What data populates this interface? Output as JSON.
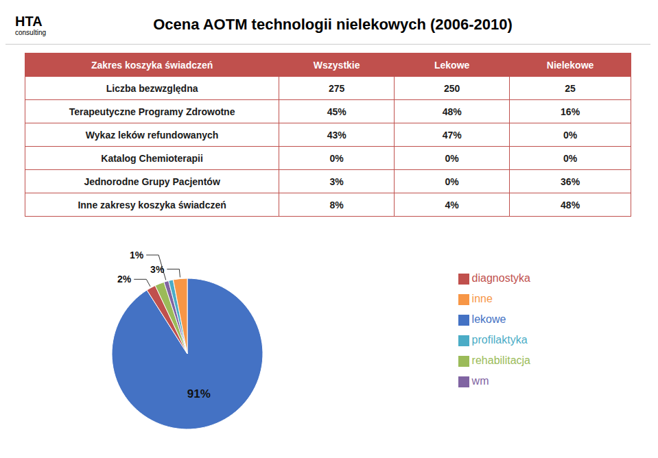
{
  "chart_data": [
    {
      "type": "pie",
      "title": "Ocena AOTM technologii nielekowych (2006-2010)",
      "annotations": [
        "HTA",
        "consulting"
      ],
      "categories": [
        "lekowe",
        "diagnostyka",
        "rehabilitacja",
        "wm",
        "profilaktyka",
        "inne"
      ],
      "values": [
        91,
        2,
        2,
        1,
        1,
        3
      ],
      "value_labels": [
        "91%",
        "2%",
        null,
        "1%",
        null,
        "3%"
      ],
      "colors": [
        "#4472c4",
        "#c0504d",
        "#9bbb59",
        "#8064a2",
        "#4bacc6",
        "#f79646"
      ],
      "legend": "right",
      "data_labels": true
    },
    {
      "type": "table",
      "columns": [
        "Zakres koszyka świadczeń",
        "Wszystkie",
        "Lekowe",
        "Nielekowe"
      ],
      "rows": [
        [
          "Liczba bezwzględna",
          "275",
          "250",
          "25"
        ],
        [
          "Terapeutyczne Programy Zdrowotne",
          "45%",
          "48%",
          "16%"
        ],
        [
          "Wykaz leków refundowanych",
          "43%",
          "47%",
          "0%"
        ],
        [
          "Katalog Chemioterapii",
          "0%",
          "0%",
          "0%"
        ],
        [
          "Jednorodne Grupy Pacjentów",
          "3%",
          "0%",
          "36%"
        ],
        [
          "Inne zakresy koszyka świadczeń",
          "8%",
          "4%",
          "48%"
        ]
      ],
      "color": "#c0504d"
    }
  ]
}
